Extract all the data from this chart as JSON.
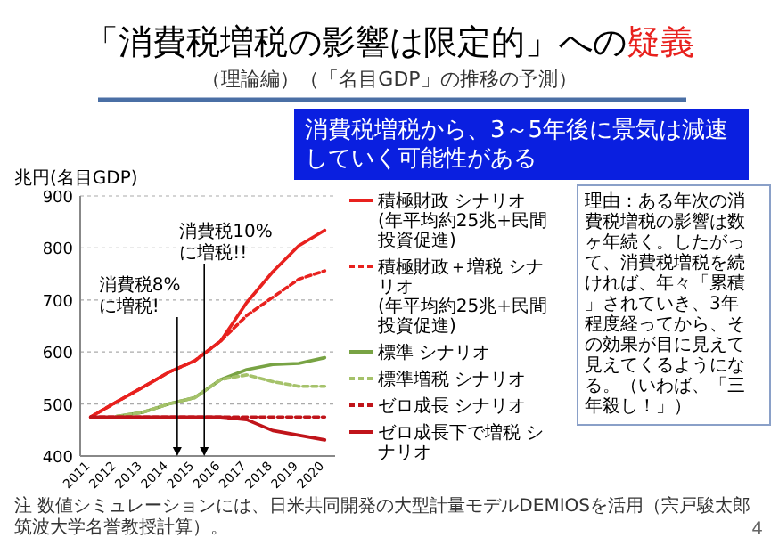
{
  "chart_data": {
    "type": "line",
    "title": "「消費税増税の影響は限定的」への疑義",
    "subtitle": "（理論編）（「名目GDP」の推移の予測）",
    "ylabel": "兆円(名目GDP)",
    "x": [
      2011,
      2012,
      2013,
      2014,
      2015,
      2016,
      2017,
      2018,
      2019,
      2020
    ],
    "xlim": [
      2010.6,
      2020.4
    ],
    "xticks": [
      2011,
      2012,
      2013,
      2014,
      2015,
      2016,
      2017,
      2018,
      2019,
      2020
    ],
    "ylim": [
      400,
      900
    ],
    "yticks": [
      400,
      500,
      600,
      700,
      800,
      900
    ],
    "grid": "y",
    "legend": "right",
    "marker": "none",
    "series": [
      {
        "name": "積極財政 シナリオ\n(年平均約25兆+民間投資促進)",
        "color": "#e8211e",
        "line_style": "solid",
        "values": [
          475,
          504,
          532,
          561,
          583,
          621,
          695,
          754,
          804,
          834
        ]
      },
      {
        "name": "積極財政＋増税 シナリオ\n(年平均約25兆+民間投資促進)",
        "color": "#e8211e",
        "line_style": "dashed",
        "values": [
          475,
          504,
          532,
          561,
          583,
          621,
          670,
          705,
          740,
          756
        ]
      },
      {
        "name": "標準 シナリオ",
        "color": "#78a344",
        "line_style": "solid",
        "values": [
          null,
          476,
          484,
          500,
          512,
          547,
          566,
          576,
          578,
          589
        ]
      },
      {
        "name": "標準増税 シナリオ",
        "color": "#a5c26a",
        "line_style": "dashed",
        "values": [
          null,
          476,
          484,
          500,
          512,
          547,
          556,
          543,
          534,
          534
        ]
      },
      {
        "name": "ゼロ成長 シナリオ",
        "color": "#c0141a",
        "line_style": "dashed",
        "values": [
          475,
          475,
          475,
          475,
          475,
          475,
          475,
          475,
          475,
          475
        ]
      },
      {
        "name": "ゼロ成長下で増税 シナリオ",
        "color": "#c0141a",
        "line_style": "solid",
        "values": [
          475,
          475,
          475,
          475,
          475,
          475,
          470,
          449,
          440,
          431
        ]
      }
    ],
    "ref_lines": [
      {
        "axis": "x",
        "value": 2014.33,
        "label": "消費税8%\nに増税!",
        "color": "#000000"
      },
      {
        "axis": "x",
        "value": 2015.37,
        "label": "消費税10%\nに増税!!",
        "color": "#000000"
      }
    ],
    "annotations": [
      "消費税増税から、3～5年後に景気は減速していく可能性がある",
      "理由：ある年次の消費税増税の影響は数ヶ年続く。したがって、消費税増税を続ければ、年々「累積」されていき、3年程度経ってから、その効果が目に見えて見えてくるようになる。（いわば、「三年殺し！」）",
      "注 数値シミュレーションには、日米共同開発の大型計量モデルDEMIOSを活用（宍戸駿太郎筑波大学名誉教授計算）。",
      "4"
    ]
  }
}
